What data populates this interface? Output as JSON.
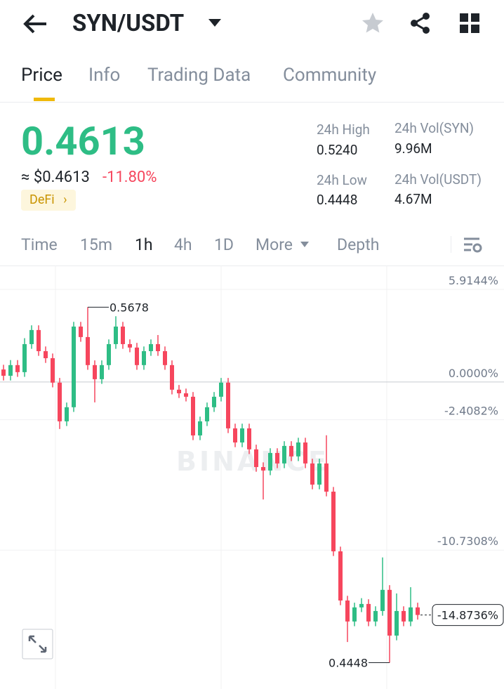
{
  "header": {
    "pair": "SYN/USDT"
  },
  "tabs": [
    "Price",
    "Info",
    "Trading Data",
    "Community"
  ],
  "quote": {
    "price": "0.4613",
    "fiat": "≈ $0.4613",
    "change": "-11.80%",
    "tag": "DeFi"
  },
  "stats": [
    {
      "label": "24h High",
      "value": "0.5240"
    },
    {
      "label": "24h Vol(SYN)",
      "value": "9.96M"
    },
    {
      "label": "24h Low",
      "value": "0.4448"
    },
    {
      "label": "24h Vol(USDT)",
      "value": "4.67M"
    }
  ],
  "intervals": [
    "Time",
    "15m",
    "1h",
    "4h",
    "1D",
    "More",
    "Depth"
  ],
  "chart_data": {
    "type": "candlestick",
    "watermark": "BINANCE",
    "high_label": "0.5678",
    "low_label": "0.4448",
    "up_color": "#2ebd85",
    "down_color": "#f6465d",
    "ylim": [
      -19.6,
      7.44
    ],
    "yticks": [
      {
        "value": 5.9144,
        "label": "5.9144%"
      },
      {
        "value": 0,
        "label": "0.0000%"
      },
      {
        "value": -2.4082,
        "label": "-2.4082%"
      },
      {
        "value": -10.7308,
        "label": "-10.7308%"
      }
    ],
    "current": {
      "value": -14.8736,
      "label": "-14.8736%"
    },
    "candles": [
      [
        0.8,
        1.1,
        0.1,
        0.4
      ],
      [
        0.4,
        1.4,
        0.1,
        1.08
      ],
      [
        1.08,
        1.4,
        0.33,
        0.63
      ],
      [
        0.63,
        2.8,
        0.33,
        2.42
      ],
      [
        2.42,
        3.62,
        2.12,
        3.32
      ],
      [
        3.32,
        3.62,
        1.67,
        1.97
      ],
      [
        1.97,
        2.27,
        1.22,
        1.52
      ],
      [
        1.52,
        1.82,
        -0.34,
        -0.04
      ],
      [
        -0.04,
        0.26,
        -3.0,
        -2.51
      ],
      [
        -2.51,
        -1.31,
        -2.81,
        -1.61
      ],
      [
        -1.61,
        3.84,
        -1.91,
        3.54
      ],
      [
        3.54,
        3.84,
        2.57,
        2.87
      ],
      [
        2.87,
        4.78,
        0.78,
        1.08
      ],
      [
        1.08,
        1.38,
        -1.3,
        0.18
      ],
      [
        0.18,
        1.38,
        -0.12,
        1.08
      ],
      [
        1.08,
        2.72,
        0.78,
        2.42
      ],
      [
        2.42,
        4.2,
        2.12,
        3.54
      ],
      [
        3.54,
        3.84,
        2.12,
        2.42
      ],
      [
        2.42,
        2.72,
        1.9,
        2.2
      ],
      [
        2.2,
        2.5,
        0.78,
        1.08
      ],
      [
        1.08,
        2.27,
        0.78,
        1.97
      ],
      [
        1.97,
        2.72,
        1.67,
        2.42
      ],
      [
        2.42,
        3.0,
        1.67,
        1.97
      ],
      [
        1.97,
        2.27,
        0.78,
        1.08
      ],
      [
        1.08,
        1.38,
        -0.79,
        -0.49
      ],
      [
        -0.49,
        -0.19,
        -1.02,
        -0.72
      ],
      [
        -0.72,
        -0.42,
        -1.24,
        -0.94
      ],
      [
        -0.94,
        -0.64,
        -3.71,
        -3.41
      ],
      [
        -3.41,
        -2.21,
        -3.71,
        -2.51
      ],
      [
        -2.51,
        -1.31,
        -2.81,
        -1.61
      ],
      [
        -1.61,
        -0.64,
        -1.91,
        -0.94
      ],
      [
        -0.94,
        0.26,
        -1.24,
        -0.04
      ],
      [
        -0.04,
        0.26,
        -3.26,
        -2.96
      ],
      [
        -2.96,
        -2.66,
        -4.16,
        -3.86
      ],
      [
        -3.86,
        -2.66,
        -4.16,
        -2.96
      ],
      [
        -2.96,
        -2.66,
        -4.6,
        -4.3
      ],
      [
        -4.3,
        -4.0,
        -5.73,
        -5.43
      ],
      [
        -5.43,
        -5.13,
        -7.5,
        -5.65
      ],
      [
        -5.65,
        -4.23,
        -5.95,
        -4.53
      ],
      [
        -4.53,
        -4.23,
        -5.5,
        -5.2
      ],
      [
        -5.2,
        -3.78,
        -5.5,
        -4.08
      ],
      [
        -4.08,
        -3.78,
        -5.05,
        -4.75
      ],
      [
        -4.75,
        -3.56,
        -5.05,
        -3.86
      ],
      [
        -3.86,
        -3.56,
        -5.5,
        -5.2
      ],
      [
        -5.2,
        -4.9,
        -6.85,
        -6.55
      ],
      [
        -6.55,
        -4.9,
        -6.85,
        -5.2
      ],
      [
        -5.2,
        -3.4,
        -7.3,
        -7.0
      ],
      [
        -7.0,
        -6.7,
        -11.11,
        -10.81
      ],
      [
        -10.81,
        -10.51,
        -14.25,
        -13.95
      ],
      [
        -13.95,
        -13.65,
        -16.6,
        -15.29
      ],
      [
        -15.29,
        -14.09,
        -15.59,
        -14.39
      ],
      [
        -14.39,
        -13.8,
        -14.69,
        -14.17
      ],
      [
        -14.17,
        -13.87,
        -15.59,
        -15.29
      ],
      [
        -15.29,
        -14.32,
        -15.59,
        -14.62
      ],
      [
        -14.62,
        -11.2,
        -14.92,
        -13.27
      ],
      [
        -13.27,
        -12.97,
        -17.92,
        -16.19
      ],
      [
        -16.19,
        -13.5,
        -16.49,
        -14.62
      ],
      [
        -14.62,
        -14.32,
        -15.59,
        -15.29
      ],
      [
        -15.29,
        -13.1,
        -15.59,
        -14.39
      ],
      [
        -14.39,
        -14.09,
        -15.17,
        -14.8736
      ]
    ]
  }
}
